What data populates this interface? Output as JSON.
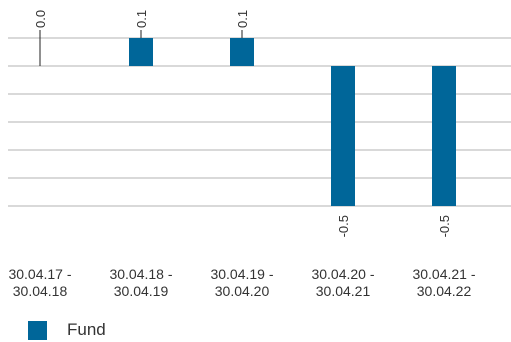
{
  "chart_data": {
    "type": "bar",
    "categories": [
      [
        "30.04.17 -",
        "30.04.18"
      ],
      [
        "30.04.18 -",
        "30.04.19"
      ],
      [
        "30.04.19 -",
        "30.04.20"
      ],
      [
        "30.04.20 -",
        "30.04.21"
      ],
      [
        "30.04.21 -",
        "30.04.22"
      ]
    ],
    "series": [
      {
        "name": "Fund",
        "values": [
          0.0,
          0.1,
          0.1,
          -0.5,
          -0.5
        ],
        "color": "#006699"
      }
    ],
    "data_labels": [
      "0.0",
      "0.1",
      "0.1",
      "-0.5",
      "-0.5"
    ],
    "ylim": [
      -0.5,
      0.1
    ],
    "grid": true,
    "legend_position": "bottom-left"
  }
}
